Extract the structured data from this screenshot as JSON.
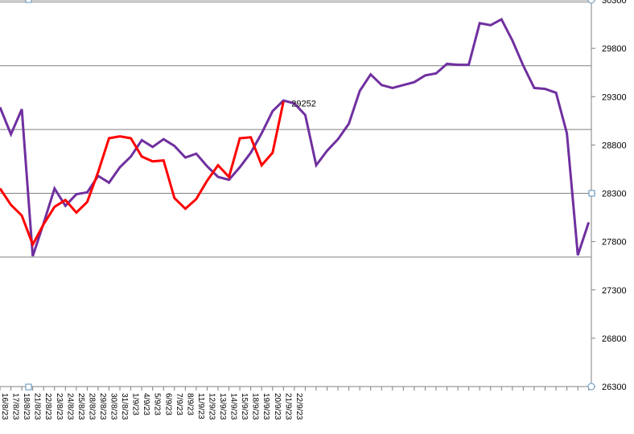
{
  "chart_data": {
    "type": "line",
    "ylim": [
      26300,
      30300
    ],
    "yticks": [
      26300,
      26800,
      27300,
      27800,
      28300,
      28800,
      29300,
      29800,
      30300
    ],
    "ytick_labels": [
      "26300",
      "26800",
      "27300",
      "27800",
      "28300",
      "28800",
      "29300",
      "29800",
      "30300"
    ],
    "major_gridlines": [
      27640,
      28300,
      28960,
      29620,
      30280
    ],
    "x_labels": [
      "16/8/23",
      "17/8/23",
      "18/8/23",
      "21/8/23",
      "22/8/23",
      "23/8/23",
      "24/8/23",
      "25/8/23",
      "28/8/23",
      "29/8/23",
      "30/8/23",
      "31/8/23",
      "1/9/23",
      "4/9/23",
      "5/9/23",
      "6/9/23",
      "7/9/23",
      "8/9/23",
      "11/9/23",
      "12/9/23",
      "13/9/23",
      "14/9/23",
      "15/9/23",
      "18/9/23",
      "19/9/23",
      "20/9/23",
      "21/9/23",
      "22/9/23"
    ],
    "annotation": "29252",
    "series": [
      {
        "color": "#7030a0",
        "values": [
          29190,
          28910,
          29170,
          27650,
          27990,
          28350,
          28170,
          28290,
          28310,
          28480,
          28410,
          28570,
          28680,
          28850,
          28780,
          28860,
          28790,
          28670,
          28710,
          28580,
          28470,
          28440,
          28570,
          28720,
          28920,
          29150,
          29260,
          29230,
          29110,
          28590,
          28740,
          28860,
          29020,
          29360,
          29530,
          29420,
          29390,
          29420,
          29450,
          29520,
          29540,
          29640,
          29630,
          29630,
          30060,
          30040,
          30100,
          29880,
          29620,
          29390,
          29380,
          29340,
          28920,
          27660,
          28000
        ]
      },
      {
        "color": "#ff0000",
        "values": [
          28350,
          28180,
          28070,
          27770,
          27980,
          28160,
          28230,
          28100,
          28210,
          28520,
          28870,
          28890,
          28870,
          28680,
          28630,
          28640,
          28250,
          28140,
          28240,
          28430,
          28590,
          28470,
          28870,
          28880,
          28590,
          28720,
          29250
        ]
      }
    ]
  }
}
